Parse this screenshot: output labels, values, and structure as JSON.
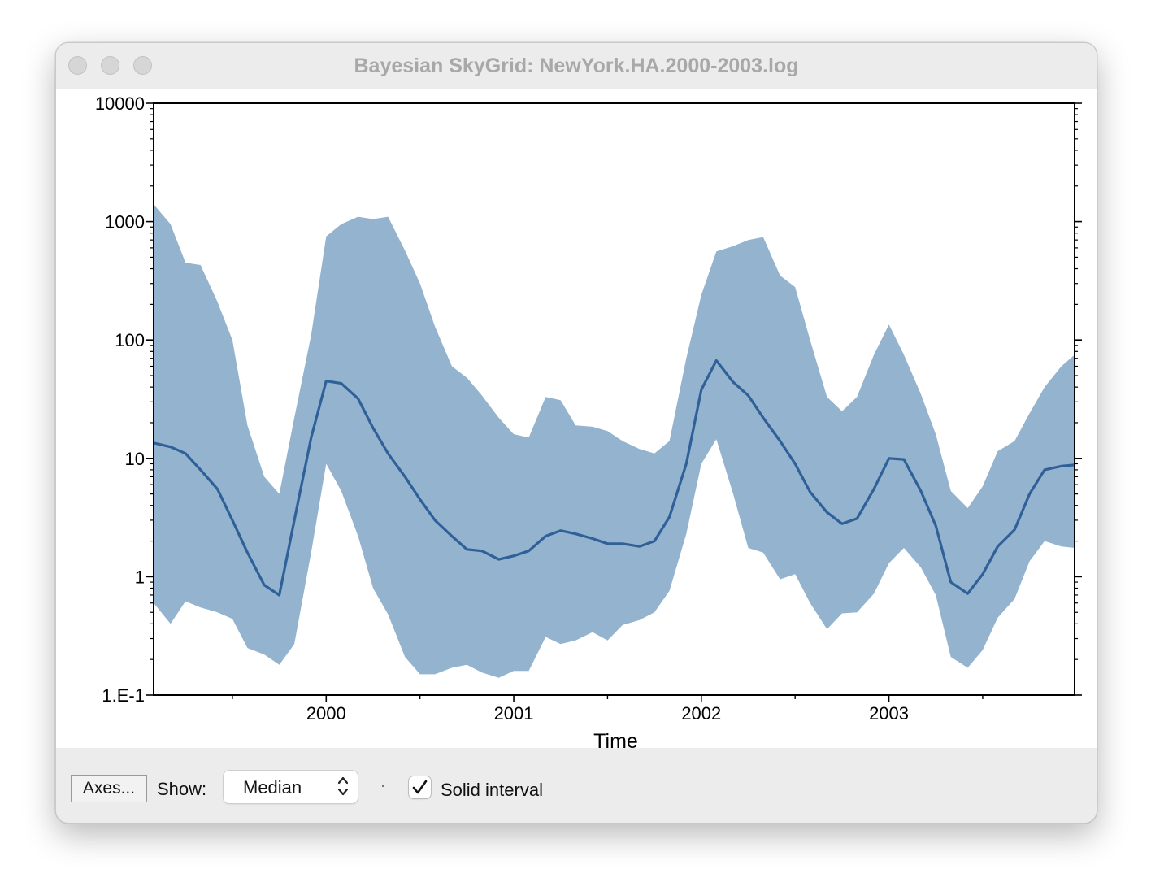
{
  "window": {
    "title": "Bayesian SkyGrid: NewYork.HA.2000-2003.log"
  },
  "controls": {
    "axes_button": "Axes...",
    "show_label": "Show:",
    "show_selected": "Median",
    "solid_interval_label": "Solid interval",
    "solid_interval_checked": true
  },
  "colors": {
    "band": "#94b3cf",
    "median": "#2f6198"
  },
  "chart_data": {
    "type": "area",
    "xlabel": "Time",
    "ylabel": "",
    "y_scale": "log",
    "xlim": [
      1999.08,
      2003.99
    ],
    "ylim": [
      0.1,
      10000
    ],
    "x_ticks": [
      {
        "value": 2000,
        "label": "2000"
      },
      {
        "value": 2001,
        "label": "2001"
      },
      {
        "value": 2002,
        "label": "2002"
      },
      {
        "value": 2003,
        "label": "2003"
      }
    ],
    "y_ticks": [
      {
        "value": 10000,
        "label": "10000"
      },
      {
        "value": 1000,
        "label": "1000"
      },
      {
        "value": 100,
        "label": "100"
      },
      {
        "value": 10,
        "label": "10"
      },
      {
        "value": 1,
        "label": "1"
      },
      {
        "value": 0.1,
        "label": "1.E-1"
      }
    ],
    "grid": false,
    "series": [
      {
        "x": [
          1999.08,
          1999.17,
          1999.25,
          1999.33,
          1999.42,
          1999.5,
          1999.58,
          1999.67,
          1999.75,
          1999.83,
          1999.92,
          2000.0,
          2000.08,
          2000.17,
          2000.25,
          2000.33,
          2000.42,
          2000.5,
          2000.58,
          2000.67,
          2000.75,
          2000.83,
          2000.92,
          2001.0,
          2001.08,
          2001.17,
          2001.25,
          2001.33,
          2001.42,
          2001.5,
          2001.58,
          2001.67,
          2001.75,
          2001.83,
          2001.92,
          2002.0,
          2002.08,
          2002.17,
          2002.25,
          2002.33,
          2002.42,
          2002.5,
          2002.58,
          2002.67,
          2002.75,
          2002.83,
          2002.92,
          2003.0,
          2003.08,
          2003.17,
          2003.25,
          2003.33,
          2003.42,
          2003.5,
          2003.58,
          2003.67,
          2003.75,
          2003.83,
          2003.92,
          2003.99
        ],
        "median": [
          13.5,
          12.5,
          11,
          8,
          5.5,
          3,
          1.6,
          0.85,
          0.7,
          3,
          15,
          45,
          43,
          32,
          18,
          11,
          7,
          4.5,
          3,
          2.2,
          1.7,
          1.65,
          1.4,
          1.5,
          1.65,
          2.2,
          2.45,
          2.3,
          2.1,
          1.9,
          1.9,
          1.8,
          2,
          3.2,
          9,
          38,
          67,
          44,
          34,
          22,
          14,
          9,
          5.2,
          3.5,
          2.8,
          3.1,
          5.5,
          10,
          9.8,
          5.3,
          2.7,
          0.9,
          0.72,
          1.05,
          1.8,
          2.5,
          5,
          8,
          8.6,
          8.8
        ],
        "upper": [
          1400,
          950,
          450,
          430,
          210,
          100,
          19,
          7,
          5,
          22,
          110,
          750,
          950,
          1100,
          1050,
          1100,
          570,
          300,
          130,
          60,
          48,
          34,
          22,
          16,
          15,
          33,
          31,
          19,
          18.5,
          17,
          14,
          12,
          11,
          14,
          70,
          240,
          560,
          620,
          700,
          740,
          350,
          280,
          100,
          33,
          25,
          33,
          75,
          135,
          75,
          35,
          16,
          5.3,
          3.8,
          5.8,
          11.5,
          14,
          24,
          40,
          60,
          75
        ],
        "lower": [
          0.6,
          0.4,
          0.62,
          0.55,
          0.5,
          0.44,
          0.25,
          0.22,
          0.18,
          0.27,
          1.6,
          9,
          5.3,
          2.2,
          0.8,
          0.48,
          0.21,
          0.15,
          0.15,
          0.17,
          0.18,
          0.155,
          0.14,
          0.16,
          0.16,
          0.31,
          0.27,
          0.29,
          0.34,
          0.29,
          0.39,
          0.43,
          0.5,
          0.76,
          2.3,
          9,
          14.5,
          5,
          1.75,
          1.6,
          0.95,
          1.05,
          0.6,
          0.36,
          0.49,
          0.5,
          0.72,
          1.3,
          1.75,
          1.2,
          0.7,
          0.21,
          0.17,
          0.24,
          0.45,
          0.65,
          1.35,
          2,
          1.8,
          1.75
        ]
      }
    ]
  }
}
